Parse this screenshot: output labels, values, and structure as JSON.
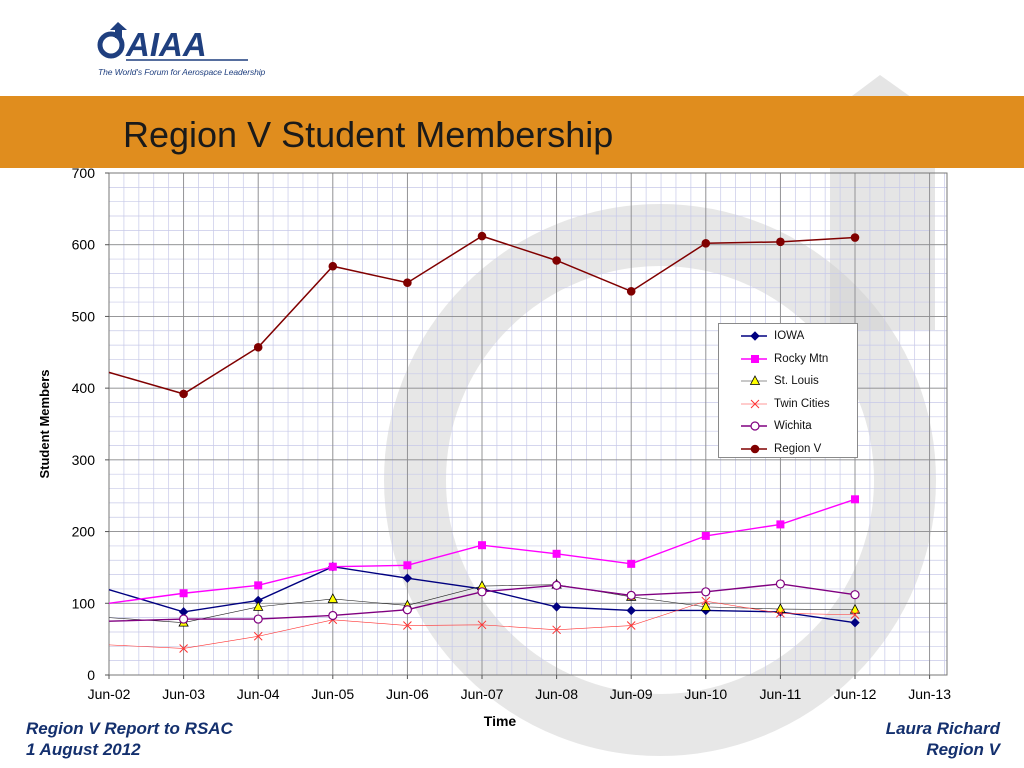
{
  "slide": {
    "title": "Region V Student Membership",
    "logo_text": "AIAA",
    "logo_tagline": "The World's Forum for Aerospace Leadership",
    "footer_left_line1": "Region V Report to RSAC",
    "footer_left_line2": "1 August 2012",
    "footer_right_line1": "Laura Richard",
    "footer_right_line2": "Region V"
  },
  "colors": {
    "band": "#e08d1e",
    "title": "#1a1a1a",
    "footer": "#14306e",
    "grid_major": "#8c8c8c",
    "grid_minor": "#c7c9e8"
  },
  "chart_data": {
    "type": "line",
    "title": "",
    "xlabel": "Time",
    "ylabel": "Student Members",
    "ylim": [
      0,
      700
    ],
    "yticks": [
      "0",
      "100",
      "200",
      "300",
      "400",
      "500",
      "600",
      "700"
    ],
    "xticks": [
      "Jun-02",
      "Jun-03",
      "Jun-04",
      "Jun-05",
      "Jun-06",
      "Jun-07",
      "Jun-08",
      "Jun-09",
      "Jun-10",
      "Jun-11",
      "Jun-12",
      "Jun-13"
    ],
    "grid": true,
    "legend_position": "right",
    "series": [
      {
        "name": "IOWA",
        "color": "#000080",
        "marker": "diamond",
        "values": [
          119,
          88,
          104,
          151,
          135,
          120,
          95,
          90,
          90,
          88,
          73,
          null
        ]
      },
      {
        "name": "Rocky Mtn",
        "color": "#ff00ff",
        "marker": "square",
        "values": [
          100,
          114,
          125,
          151,
          153,
          181,
          169,
          155,
          194,
          210,
          245,
          null
        ]
      },
      {
        "name": "St. Louis",
        "color": "#222222",
        "marker": "triangle",
        "values": [
          80,
          73,
          95,
          106,
          97,
          124,
          126,
          109,
          95,
          92,
          91,
          null
        ]
      },
      {
        "name": "Twin Cities",
        "color": "#ff3333",
        "marker": "x",
        "values": [
          42,
          37,
          54,
          77,
          69,
          70,
          63,
          69,
          103,
          86,
          84,
          null
        ]
      },
      {
        "name": "Wichita",
        "color": "#800080",
        "marker": "circle-open",
        "values": [
          75,
          78,
          78,
          83,
          91,
          116,
          125,
          111,
          116,
          127,
          112,
          null
        ]
      },
      {
        "name": "Region V",
        "color": "#800000",
        "marker": "circle-filled",
        "values": [
          422,
          392,
          457,
          570,
          547,
          612,
          578,
          535,
          602,
          604,
          610,
          null
        ]
      }
    ]
  }
}
